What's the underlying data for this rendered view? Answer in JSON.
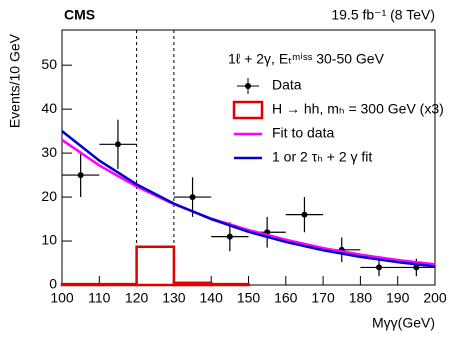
{
  "chart_data": {
    "type": "scatter",
    "title": "CMS",
    "subtitle": "19.5 fb⁻¹ (8 TeV)",
    "annotation": "1ℓ + 2γ, Eₜᵐⁱˢˢ 30-50 GeV",
    "x_label": "Mγγ(GeV)",
    "y_label": "Events/10 GeV",
    "xlim": [
      100,
      200
    ],
    "ylim": [
      0,
      58
    ],
    "xticks": [
      100,
      110,
      120,
      130,
      140,
      150,
      160,
      170,
      180,
      190,
      200
    ],
    "yticks": [
      0,
      10,
      20,
      30,
      40,
      50
    ],
    "vlines": [
      120,
      130
    ],
    "series": [
      {
        "name": "Data",
        "type": "scatter",
        "color": "#000000",
        "x": [
          105,
          115,
          135,
          145,
          155,
          165,
          175,
          185,
          195
        ],
        "values": [
          25,
          32,
          20,
          11,
          12,
          16,
          8,
          4,
          4
        ],
        "errors": [
          5,
          5.6,
          4.5,
          3.3,
          3.5,
          4,
          2.8,
          2,
          2
        ]
      },
      {
        "name": "H → hh, mₕ = 300 GeV (x3)",
        "type": "histogram",
        "color": "#e00000",
        "bins": [
          100,
          110,
          120,
          130,
          140,
          150,
          160,
          170,
          180,
          190,
          200
        ],
        "values": [
          0.2,
          0.2,
          8.7,
          0.5,
          0.2,
          0,
          0,
          0,
          0,
          0
        ]
      },
      {
        "name": "Fit to data",
        "type": "line",
        "color": "#ff00ff",
        "x": [
          100,
          110,
          120,
          130,
          140,
          150,
          160,
          170,
          180,
          190,
          200
        ],
        "values": [
          33,
          27.2,
          22.4,
          18.4,
          15.1,
          12.5,
          10.3,
          8.4,
          6.9,
          5.7,
          4.7
        ]
      },
      {
        "name": "1 or 2 τₕ + 2 γ fit",
        "type": "line",
        "color": "#0000cc",
        "x": [
          100,
          110,
          120,
          130,
          140,
          150,
          160,
          170,
          180,
          190,
          200
        ],
        "values": [
          35,
          28.3,
          22.9,
          18.5,
          15.0,
          12.1,
          9.8,
          7.9,
          6.4,
          5.2,
          4.2
        ]
      }
    ]
  }
}
